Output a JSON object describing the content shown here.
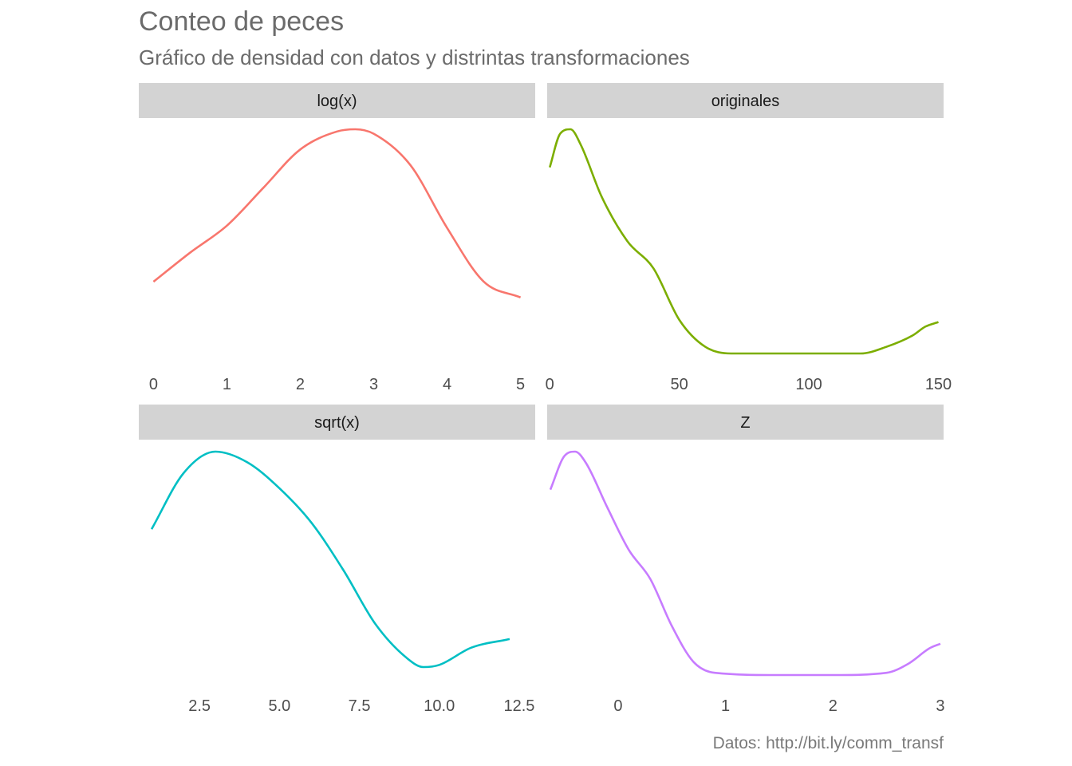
{
  "title": "Conteo de peces",
  "subtitle": "Gráfico de densidad con datos y distrintas transformaciones",
  "caption": "Datos: http://bit.ly/comm_transf",
  "chart_data": [
    {
      "type": "line",
      "facet": "log(x)",
      "color": "#f8766d",
      "xlim": [
        -0.2,
        5.2
      ],
      "ylim": [
        0,
        1
      ],
      "x_ticks": [
        0,
        1,
        2,
        3,
        4,
        5
      ],
      "x_tick_labels": [
        "0",
        "1",
        "2",
        "3",
        "4",
        "5"
      ],
      "x": [
        0,
        0.5,
        1,
        1.5,
        2,
        2.5,
        2.75,
        3,
        3.5,
        4,
        4.5,
        5
      ],
      "y": [
        0.32,
        0.45,
        0.57,
        0.74,
        0.91,
        0.99,
        1.0,
        0.98,
        0.84,
        0.56,
        0.32,
        0.25
      ]
    },
    {
      "type": "line",
      "facet": "originales",
      "color": "#7cae00",
      "xlim": [
        -1,
        152
      ],
      "ylim": [
        0,
        1
      ],
      "x_ticks": [
        0,
        50,
        100,
        150
      ],
      "x_tick_labels": [
        "0",
        "50",
        "100",
        "150"
      ],
      "x": [
        0,
        4,
        8,
        12,
        20,
        30,
        40,
        50,
        60,
        70,
        80,
        100,
        120,
        130,
        140,
        145,
        150
      ],
      "y": [
        0.83,
        0.98,
        1.0,
        0.93,
        0.7,
        0.5,
        0.38,
        0.15,
        0.03,
        0.0,
        0.0,
        0.0,
        0.0,
        0.03,
        0.08,
        0.12,
        0.14
      ]
    },
    {
      "type": "line",
      "facet": "sqrt(x)",
      "color": "#00bfc4",
      "xlim": [
        0.6,
        13.0
      ],
      "ylim": [
        0,
        1
      ],
      "x_ticks": [
        2.5,
        5.0,
        7.5,
        10.0,
        12.5
      ],
      "x_tick_labels": [
        "2.5",
        "5.0",
        "7.5",
        "10.0",
        "12.5"
      ],
      "x": [
        1.0,
        2.0,
        3.0,
        4.0,
        5.0,
        6.0,
        7.0,
        8.0,
        9.0,
        9.5,
        10.0,
        11.0,
        12.2
      ],
      "y": [
        0.64,
        0.9,
        1.0,
        0.95,
        0.83,
        0.67,
        0.45,
        0.2,
        0.04,
        0.0,
        0.01,
        0.09,
        0.13
      ]
    },
    {
      "type": "line",
      "facet": "Z",
      "color": "#c77cff",
      "xlim": [
        -0.66,
        3.03
      ],
      "ylim": [
        0,
        1
      ],
      "x_ticks": [
        0,
        1,
        2,
        3
      ],
      "x_tick_labels": [
        "0",
        "1",
        "2",
        "3"
      ],
      "x": [
        -0.63,
        -0.5,
        -0.4,
        -0.3,
        -0.1,
        0.1,
        0.3,
        0.5,
        0.7,
        0.9,
        1.5,
        2.0,
        2.5,
        2.7,
        2.9,
        3.0
      ],
      "y": [
        0.83,
        0.98,
        1.0,
        0.95,
        0.75,
        0.56,
        0.43,
        0.22,
        0.06,
        0.01,
        0.0,
        0.0,
        0.01,
        0.05,
        0.12,
        0.14
      ]
    }
  ]
}
